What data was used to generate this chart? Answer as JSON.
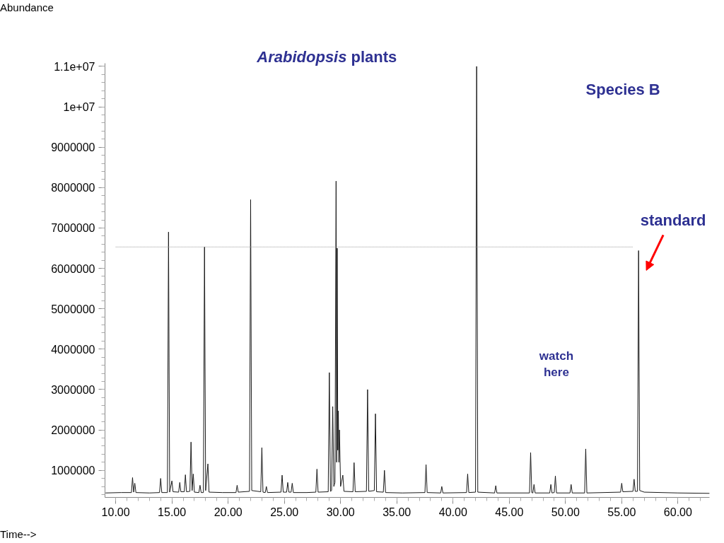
{
  "chart_data": {
    "type": "line",
    "title": "Arabidopsis plants",
    "xlabel": "Time-->",
    "ylabel": "Abundance",
    "xlim": [
      9.05,
      62.8
    ],
    "ylim": [
      330000,
      11070000
    ],
    "xticks": [
      {
        "value": 10,
        "label": "10.00"
      },
      {
        "value": 15,
        "label": "15.00"
      },
      {
        "value": 20,
        "label": "20.00"
      },
      {
        "value": 25,
        "label": "25.00"
      },
      {
        "value": 30,
        "label": "30.00"
      },
      {
        "value": 35,
        "label": "35.00"
      },
      {
        "value": 40,
        "label": "40.00"
      },
      {
        "value": 45,
        "label": "45.00"
      },
      {
        "value": 50,
        "label": "50.00"
      },
      {
        "value": 55,
        "label": "55.00"
      },
      {
        "value": 60,
        "label": "60.00"
      }
    ],
    "yticks": [
      1000000,
      2000000,
      3000000,
      4000000,
      5000000,
      6000000,
      7000000,
      8000000,
      9000000,
      {
        "value": 10000000,
        "label": "1e+07"
      },
      {
        "value": 11000000,
        "label": "1.1e+07"
      }
    ],
    "grid": false,
    "annotations": [
      "Species B",
      "standard",
      "watch\nhere"
    ],
    "series": [
      {
        "color": "#1a1a1a",
        "line_style": "solid",
        "x": [
          9.1,
          10.5,
          11.4,
          11.5,
          11.6,
          11.7,
          11.8,
          13.0,
          13.9,
          14.0,
          14.1,
          14.6,
          14.7,
          14.8,
          15.0,
          15.1,
          15.6,
          15.7,
          15.8,
          16.1,
          16.2,
          16.3,
          16.6,
          16.7,
          16.8,
          16.9,
          17.0,
          17.4,
          17.5,
          17.6,
          17.8,
          17.9,
          18.0,
          18.2,
          18.3,
          19.5,
          20.7,
          20.8,
          20.9,
          21.9,
          22.0,
          22.1,
          22.9,
          23.0,
          23.1,
          23.3,
          23.4,
          23.5,
          24.7,
          24.8,
          24.9,
          25.2,
          25.3,
          25.4,
          25.6,
          25.7,
          25.8,
          27.0,
          27.8,
          27.9,
          28.0,
          28.9,
          29.0,
          29.1,
          29.2,
          29.3,
          29.4,
          29.5,
          29.6,
          29.65,
          29.7,
          29.75,
          29.8,
          29.85,
          29.9,
          30.0,
          30.2,
          30.3,
          31.1,
          31.2,
          31.3,
          32.3,
          32.4,
          32.5,
          33.0,
          33.1,
          33.2,
          33.8,
          33.9,
          34.0,
          35.5,
          37.5,
          37.6,
          37.7,
          38.9,
          39.0,
          39.1,
          41.2,
          41.3,
          41.4,
          42.0,
          42.1,
          42.2,
          43.7,
          43.8,
          43.9,
          46.8,
          46.9,
          47.0,
          47.1,
          47.2,
          47.3,
          48.6,
          48.7,
          48.8,
          49.0,
          49.1,
          49.2,
          50.4,
          50.5,
          50.6,
          51.7,
          51.8,
          51.9,
          54.9,
          55.0,
          55.1,
          56.0,
          56.1,
          56.2,
          56.4,
          56.5,
          56.6,
          57.0,
          60.0,
          62.8
        ],
        "values": [
          440000,
          450000,
          450000,
          820000,
          460000,
          680000,
          450000,
          440000,
          450000,
          800000,
          450000,
          450000,
          6900000,
          460000,
          740000,
          470000,
          460000,
          700000,
          470000,
          470000,
          890000,
          470000,
          480000,
          1700000,
          500000,
          910000,
          460000,
          450000,
          630000,
          450000,
          450000,
          6530000,
          500000,
          1160000,
          460000,
          450000,
          450000,
          630000,
          460000,
          480000,
          7700000,
          500000,
          470000,
          1560000,
          460000,
          450000,
          600000,
          450000,
          460000,
          880000,
          460000,
          460000,
          700000,
          460000,
          460000,
          680000,
          450000,
          450000,
          460000,
          1030000,
          460000,
          470000,
          3420000,
          480000,
          500000,
          2580000,
          600000,
          700000,
          8160000,
          1200000,
          6500000,
          1500000,
          2470000,
          1200000,
          2000000,
          600000,
          880000,
          480000,
          470000,
          1190000,
          470000,
          480000,
          3000000,
          480000,
          500000,
          2400000,
          470000,
          460000,
          1000000,
          450000,
          440000,
          450000,
          1140000,
          450000,
          440000,
          600000,
          440000,
          450000,
          910000,
          450000,
          460000,
          11000000,
          460000,
          440000,
          620000,
          440000,
          440000,
          1440000,
          450000,
          440000,
          650000,
          440000,
          440000,
          650000,
          440000,
          450000,
          860000,
          440000,
          440000,
          650000,
          440000,
          440000,
          1530000,
          440000,
          460000,
          680000,
          470000,
          480000,
          780000,
          480000,
          480000,
          6440000,
          500000,
          460000,
          440000,
          430000
        ]
      },
      {
        "color": "#999999",
        "line_style": "dotted",
        "x": [
          10.0,
          56.0
        ],
        "values": [
          6530000,
          6530000
        ]
      }
    ]
  }
}
